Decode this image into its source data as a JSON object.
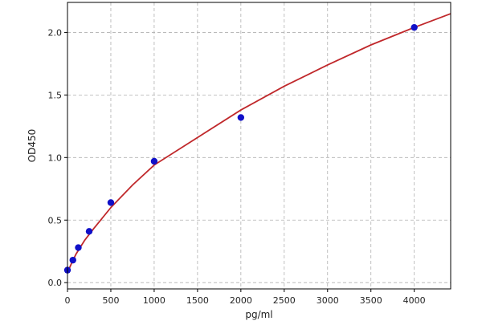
{
  "chart_data": {
    "type": "scatter",
    "title": "",
    "xlabel": "pg/ml",
    "ylabel": "OD450",
    "xlim": [
      0,
      4420
    ],
    "ylim": [
      -0.05,
      2.24
    ],
    "xticks": [
      0,
      500,
      1000,
      1500,
      2000,
      2500,
      3000,
      3500,
      4000
    ],
    "yticks": [
      0.0,
      0.5,
      1.0,
      1.5,
      2.0
    ],
    "xtick_labels": [
      "0",
      "500",
      "1000",
      "1500",
      "2000",
      "2500",
      "3000",
      "3500",
      "4000"
    ],
    "ytick_labels": [
      "0.0",
      "0.5",
      "1.0",
      "1.5",
      "2.0"
    ],
    "grid": true,
    "series": [
      {
        "kind": "points",
        "color": "#1010c8",
        "x": [
          0,
          62.5,
          125,
          250,
          500,
          1000,
          2000,
          4000
        ],
        "y": [
          0.1,
          0.18,
          0.28,
          0.41,
          0.64,
          0.97,
          1.32,
          2.04
        ]
      },
      {
        "kind": "fitted-curve",
        "color": "#c0282b",
        "x": [
          0,
          25,
          50,
          100,
          200,
          300,
          500,
          750,
          1000,
          1500,
          2000,
          2500,
          3000,
          3500,
          4000,
          4420
        ],
        "y": [
          0.08,
          0.12,
          0.16,
          0.23,
          0.34,
          0.43,
          0.6,
          0.78,
          0.94,
          1.16,
          1.38,
          1.57,
          1.74,
          1.9,
          2.04,
          2.15
        ]
      }
    ]
  }
}
